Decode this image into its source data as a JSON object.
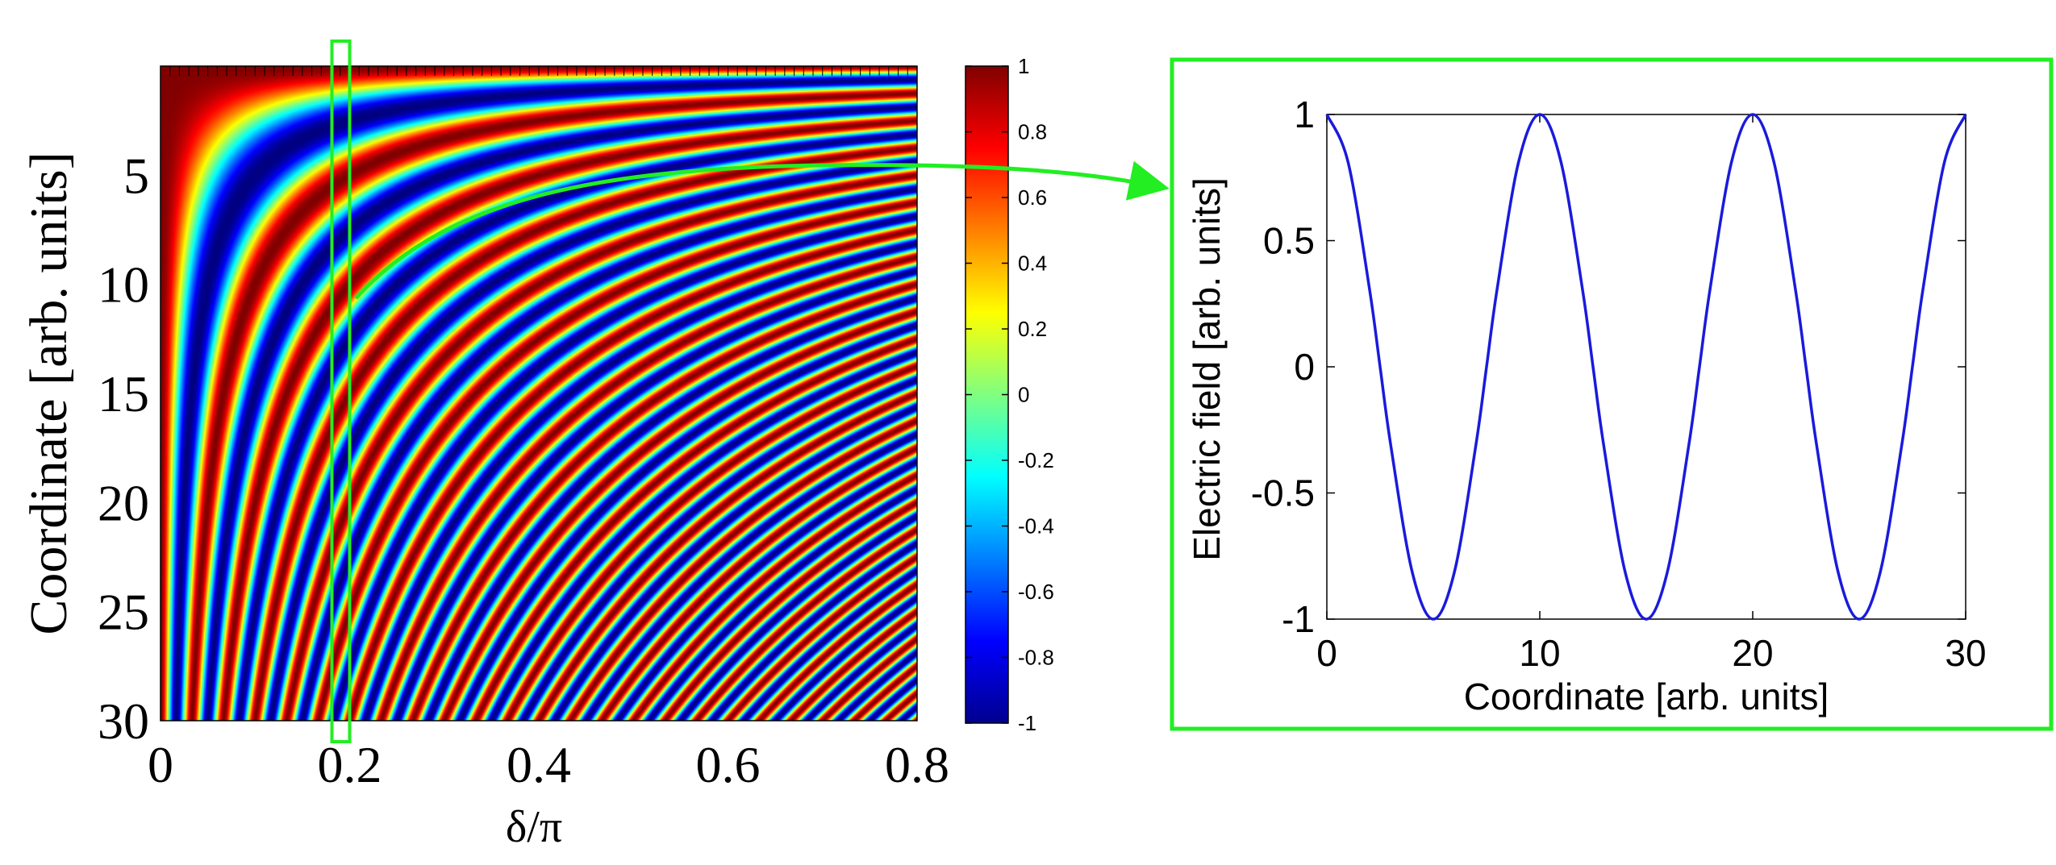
{
  "chart_data": [
    {
      "type": "heatmap",
      "title": "",
      "xlabel": "δ/π",
      "ylabel": "Coordinate [arb. units]",
      "xlim": [
        0,
        0.8
      ],
      "ylim": [
        0,
        30
      ],
      "y_reversed": true,
      "x_ticks": [
        "0",
        "0.2",
        "0.4",
        "0.6",
        "0.8"
      ],
      "x_tick_values": [
        0,
        0.2,
        0.4,
        0.6,
        0.8
      ],
      "y_ticks": [
        "5",
        "10",
        "15",
        "20",
        "25",
        "30"
      ],
      "y_tick_values": [
        5,
        10,
        15,
        20,
        25,
        30
      ],
      "function": "cos(2π · y · δ/π)",
      "colormap": "jet",
      "colorbar": {
        "min": -1,
        "max": 1,
        "ticks": [
          "1",
          "0.8",
          "0.6",
          "0.4",
          "0.2",
          "0",
          "-0.2",
          "-0.4",
          "-0.6",
          "-0.8",
          "-1"
        ],
        "tick_values": [
          1,
          0.8,
          0.6,
          0.4,
          0.2,
          0,
          -0.2,
          -0.4,
          -0.6,
          -0.8,
          -1
        ]
      },
      "highlight": {
        "x": 0.2,
        "color": "#22ee22"
      }
    },
    {
      "type": "line",
      "title": "",
      "xlabel": "Coordinate [arb. units]",
      "ylabel": "Electric field [arb. units]",
      "xlim": [
        0,
        30
      ],
      "ylim": [
        -1,
        1
      ],
      "x_ticks": [
        "0",
        "10",
        "20",
        "30"
      ],
      "x_tick_values": [
        0,
        10,
        20,
        30
      ],
      "y_ticks": [
        "1",
        "0.5",
        "0",
        "-0.5",
        "-1"
      ],
      "y_tick_values": [
        1,
        0.5,
        0,
        -0.5,
        -1
      ],
      "series": [
        {
          "color": "#1a1adc",
          "x": [
            0,
            1,
            2,
            2.5,
            3,
            4,
            5,
            6,
            7,
            7.5,
            8,
            9,
            10,
            11,
            12,
            12.5,
            13,
            14,
            15,
            16,
            17,
            17.5,
            18,
            19,
            20,
            21,
            22,
            22.5,
            23,
            24,
            25,
            26,
            27,
            27.5,
            28,
            29,
            30
          ],
          "y": [
            1,
            0.81,
            0.31,
            0,
            -0.31,
            -0.81,
            -1,
            -0.81,
            -0.31,
            0,
            0.31,
            0.81,
            1,
            0.81,
            0.31,
            0,
            -0.31,
            -0.81,
            -1,
            -0.81,
            -0.31,
            0,
            0.31,
            0.81,
            1,
            0.81,
            0.31,
            0,
            -0.31,
            -0.81,
            -1,
            -0.81,
            -0.31,
            0,
            0.31,
            0.81,
            1
          ]
        }
      ],
      "frame_color": "#22ee22"
    }
  ]
}
